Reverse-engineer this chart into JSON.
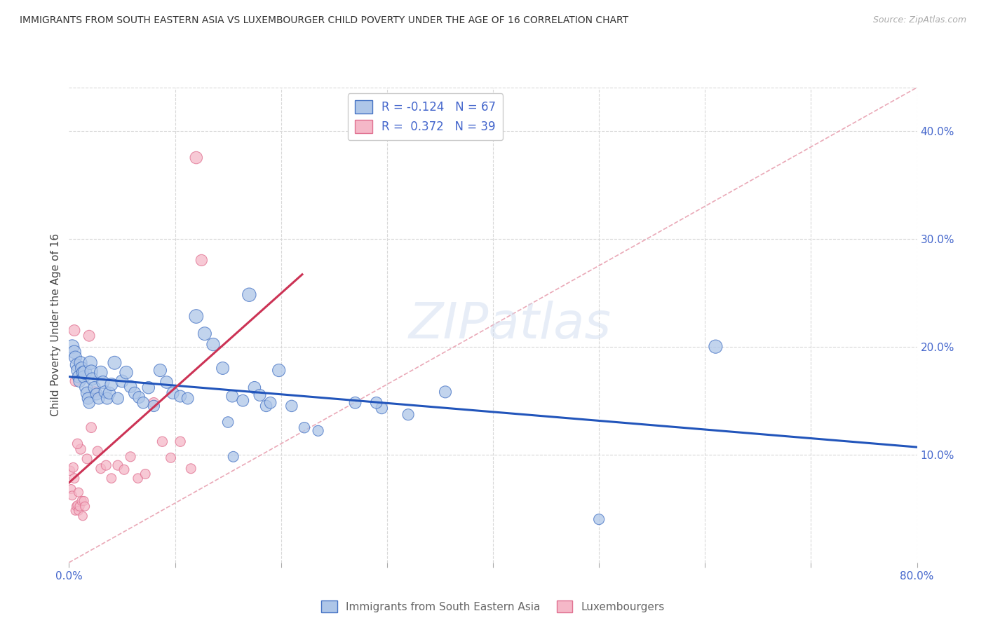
{
  "title": "IMMIGRANTS FROM SOUTH EASTERN ASIA VS LUXEMBOURGER CHILD POVERTY UNDER THE AGE OF 16 CORRELATION CHART",
  "source": "Source: ZipAtlas.com",
  "ylabel": "Child Poverty Under the Age of 16",
  "blue_label": "Immigrants from South Eastern Asia",
  "pink_label": "Luxembourgers",
  "blue_R": -0.124,
  "blue_N": 67,
  "pink_R": 0.372,
  "pink_N": 39,
  "blue_face": "#aec6e8",
  "blue_edge": "#4472c4",
  "pink_face": "#f5b8c8",
  "pink_edge": "#e07090",
  "blue_line_color": "#2255bb",
  "pink_line_color": "#cc3355",
  "diag_color": "#e8a0b0",
  "grid_color": "#d8d8d8",
  "bg_color": "#ffffff",
  "tick_label_color": "#4466cc",
  "xlim": [
    0.0,
    0.8
  ],
  "ylim": [
    0.0,
    0.44
  ],
  "xtick_vals": [
    0.0,
    0.1,
    0.2,
    0.3,
    0.4,
    0.5,
    0.6,
    0.7,
    0.8
  ],
  "ytick_vals": [
    0.1,
    0.2,
    0.3,
    0.4
  ],
  "blue_x": [
    0.003,
    0.005,
    0.006,
    0.007,
    0.008,
    0.009,
    0.01,
    0.011,
    0.012,
    0.013,
    0.014,
    0.015,
    0.016,
    0.017,
    0.018,
    0.019,
    0.02,
    0.021,
    0.022,
    0.024,
    0.026,
    0.028,
    0.03,
    0.032,
    0.034,
    0.036,
    0.038,
    0.04,
    0.043,
    0.046,
    0.05,
    0.054,
    0.058,
    0.062,
    0.066,
    0.07,
    0.075,
    0.08,
    0.086,
    0.092,
    0.098,
    0.105,
    0.112,
    0.12,
    0.128,
    0.136,
    0.145,
    0.154,
    0.164,
    0.175,
    0.186,
    0.198,
    0.21,
    0.222,
    0.235,
    0.27,
    0.295,
    0.32,
    0.355,
    0.17,
    0.18,
    0.19,
    0.29,
    0.5,
    0.61,
    0.15,
    0.155
  ],
  "blue_y": [
    0.2,
    0.195,
    0.19,
    0.183,
    0.178,
    0.172,
    0.168,
    0.185,
    0.18,
    0.176,
    0.172,
    0.176,
    0.162,
    0.157,
    0.152,
    0.148,
    0.185,
    0.177,
    0.17,
    0.162,
    0.156,
    0.152,
    0.176,
    0.167,
    0.158,
    0.152,
    0.157,
    0.165,
    0.185,
    0.152,
    0.168,
    0.176,
    0.163,
    0.157,
    0.153,
    0.148,
    0.162,
    0.145,
    0.178,
    0.167,
    0.157,
    0.154,
    0.152,
    0.228,
    0.212,
    0.202,
    0.18,
    0.154,
    0.15,
    0.162,
    0.145,
    0.178,
    0.145,
    0.125,
    0.122,
    0.148,
    0.143,
    0.137,
    0.158,
    0.248,
    0.155,
    0.148,
    0.148,
    0.04,
    0.2,
    0.13,
    0.098
  ],
  "blue_size": [
    200,
    180,
    170,
    160,
    160,
    155,
    155,
    170,
    165,
    158,
    155,
    200,
    165,
    158,
    148,
    142,
    195,
    175,
    165,
    155,
    148,
    145,
    180,
    168,
    158,
    148,
    155,
    168,
    185,
    148,
    165,
    175,
    160,
    153,
    148,
    142,
    158,
    138,
    170,
    160,
    153,
    148,
    145,
    200,
    185,
    172,
    165,
    148,
    145,
    158,
    140,
    170,
    140,
    122,
    118,
    145,
    140,
    135,
    150,
    195,
    148,
    142,
    142,
    118,
    190,
    125,
    115
  ],
  "pink_x": [
    0.001,
    0.002,
    0.003,
    0.004,
    0.005,
    0.006,
    0.007,
    0.008,
    0.009,
    0.01,
    0.011,
    0.012,
    0.013,
    0.014,
    0.015,
    0.017,
    0.019,
    0.021,
    0.024,
    0.027,
    0.03,
    0.035,
    0.04,
    0.046,
    0.052,
    0.058,
    0.065,
    0.072,
    0.08,
    0.088,
    0.096,
    0.105,
    0.115,
    0.125,
    0.005,
    0.006,
    0.008,
    0.009,
    0.12
  ],
  "pink_y": [
    0.085,
    0.068,
    0.062,
    0.088,
    0.078,
    0.048,
    0.052,
    0.053,
    0.048,
    0.052,
    0.105,
    0.057,
    0.043,
    0.057,
    0.052,
    0.096,
    0.21,
    0.125,
    0.158,
    0.103,
    0.087,
    0.09,
    0.078,
    0.09,
    0.086,
    0.098,
    0.078,
    0.082,
    0.148,
    0.112,
    0.097,
    0.112,
    0.087,
    0.28,
    0.215,
    0.168,
    0.11,
    0.065,
    0.375
  ],
  "pink_size": [
    95,
    88,
    85,
    98,
    98,
    85,
    88,
    90,
    85,
    90,
    108,
    90,
    82,
    90,
    88,
    100,
    130,
    110,
    118,
    105,
    100,
    102,
    95,
    102,
    100,
    102,
    95,
    98,
    110,
    105,
    98,
    105,
    100,
    135,
    130,
    115,
    105,
    88,
    158
  ]
}
